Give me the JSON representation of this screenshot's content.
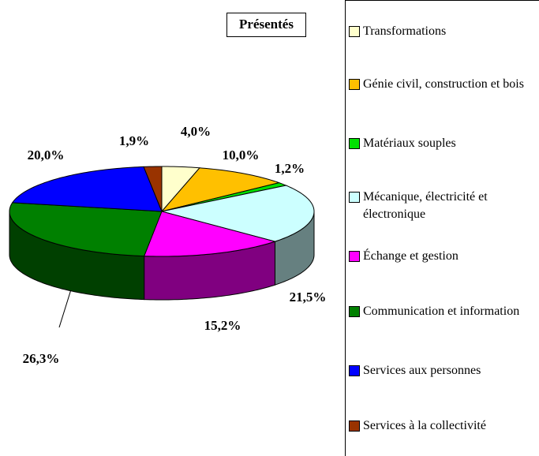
{
  "chart_data": {
    "type": "pie3d",
    "title": "Présentés",
    "categories": [
      "Transformations",
      "Génie civil, construction et bois",
      "Matériaux souples",
      "Mécanique, électricité et électronique",
      "Échange et gestion",
      "Communication et information",
      "Services aux personnes",
      "Services à la collectivité"
    ],
    "values": [
      4.0,
      10.0,
      1.2,
      21.5,
      15.2,
      26.3,
      20.0,
      1.9
    ],
    "value_labels": [
      "4,0%",
      "10,0%",
      "1,2%",
      "21,5%",
      "15,2%",
      "26,3%",
      "20,0%",
      "1,9%"
    ],
    "colors": [
      "#ffffcc",
      "#ffc000",
      "#00e000",
      "#ccffff",
      "#ff00ff",
      "#008000",
      "#0000ff",
      "#993300"
    ]
  }
}
